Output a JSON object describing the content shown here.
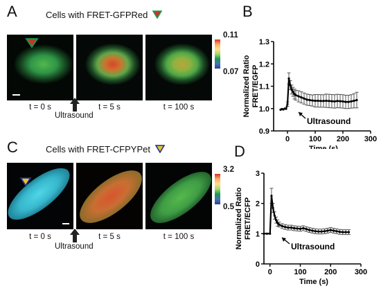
{
  "panel_a": {
    "letter": "A",
    "title": "Cells with FRET-GFPRed",
    "time_labels": [
      "t = 0 s",
      "t = 5 s",
      "t = 100 s"
    ],
    "stimulus_label": "Ultrasound",
    "colorbar_max": "0.11",
    "colorbar_min": "0.07"
  },
  "panel_b": {
    "letter": "B"
  },
  "panel_c": {
    "letter": "C",
    "title": "Cells with FRET-CFPYPet",
    "time_labels": [
      "t = 0 s",
      "t = 5 s",
      "t = 100 s"
    ],
    "stimulus_label": "Ultrasound",
    "colorbar_max": "3.2",
    "colorbar_min": "0.5"
  },
  "panel_d": {
    "letter": "D"
  },
  "chart_data": [
    {
      "type": "line",
      "ylabel": "Normalized Ratio\nFRET/EGFP",
      "xlabel": "Time (s)",
      "xlim": [
        -50,
        300
      ],
      "ylim": [
        0.9,
        1.3
      ],
      "xticks": [
        0,
        100,
        200,
        300
      ],
      "yticks": [
        0.9,
        1.0,
        1.1,
        1.2,
        1.3
      ],
      "annotation": "Ultrasound",
      "series": [
        {
          "x": [
            -25,
            -20,
            -15,
            -10,
            -5,
            0,
            5,
            10,
            15,
            20,
            25,
            30,
            40,
            50,
            60,
            70,
            80,
            90,
            100,
            110,
            120,
            130,
            140,
            150,
            160,
            170,
            180,
            190,
            200,
            210,
            220,
            230,
            240,
            250
          ],
          "y": [
            0.995,
            0.998,
            0.996,
            1.0,
            0.999,
            1.02,
            1.135,
            1.105,
            1.085,
            1.075,
            1.065,
            1.06,
            1.055,
            1.05,
            1.045,
            1.04,
            1.038,
            1.036,
            1.035,
            1.035,
            1.034,
            1.034,
            1.035,
            1.034,
            1.033,
            1.032,
            1.034,
            1.033,
            1.032,
            1.03,
            1.03,
            1.032,
            1.035,
            1.038
          ],
          "err": [
            0,
            0,
            0,
            0,
            0,
            0.01,
            0.025,
            0.02,
            0.02,
            0.02,
            0.022,
            0.022,
            0.025,
            0.025,
            0.025,
            0.025,
            0.025,
            0.025,
            0.028,
            0.028,
            0.028,
            0.028,
            0.03,
            0.03,
            0.03,
            0.03,
            0.03,
            0.03,
            0.03,
            0.03,
            0.03,
            0.03,
            0.032,
            0.035
          ]
        }
      ]
    },
    {
      "type": "line",
      "ylabel": "Normalized Ratio\nFRET/ECFP",
      "xlabel": "Time (s)",
      "xlim": [
        -20,
        300
      ],
      "ylim": [
        0,
        3
      ],
      "xticks": [
        0,
        100,
        200,
        300
      ],
      "yticks": [
        0,
        1,
        2,
        3
      ],
      "annotation": "Ultrasound",
      "series": [
        {
          "x": [
            -20,
            -10,
            0,
            5,
            10,
            15,
            20,
            25,
            30,
            40,
            50,
            60,
            70,
            80,
            90,
            100,
            110,
            120,
            130,
            140,
            150,
            160,
            170,
            180,
            190,
            200,
            210,
            220,
            230,
            240,
            250,
            260
          ],
          "y": [
            1.0,
            1.0,
            1.0,
            2.25,
            1.85,
            1.6,
            1.45,
            1.35,
            1.3,
            1.25,
            1.22,
            1.2,
            1.2,
            1.18,
            1.17,
            1.16,
            1.18,
            1.15,
            1.12,
            1.1,
            1.08,
            1.07,
            1.07,
            1.08,
            1.1,
            1.12,
            1.1,
            1.08,
            1.06,
            1.05,
            1.05,
            1.05
          ],
          "err": [
            0,
            0,
            0,
            0.25,
            0.15,
            0.12,
            0.1,
            0.1,
            0.08,
            0.08,
            0.08,
            0.08,
            0.08,
            0.08,
            0.08,
            0.08,
            0.08,
            0.08,
            0.08,
            0.08,
            0.08,
            0.08,
            0.08,
            0.08,
            0.08,
            0.08,
            0.08,
            0.08,
            0.08,
            0.08,
            0.08,
            0.08
          ]
        }
      ]
    }
  ]
}
